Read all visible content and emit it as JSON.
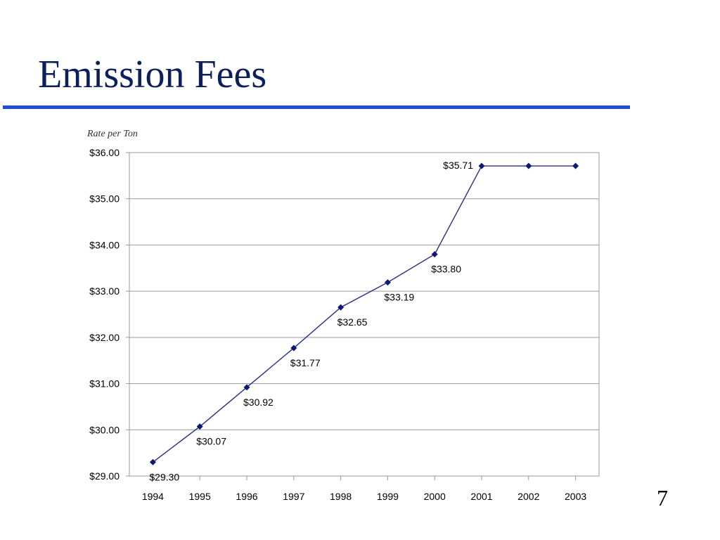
{
  "slide": {
    "title": "Emission Fees",
    "page_number": "7",
    "rule_color": "#1f4fd6",
    "title_color": "#0a1f5c"
  },
  "chart_data": {
    "type": "line",
    "title": "",
    "xlabel": "",
    "ylabel": "Rate per Ton",
    "x": [
      "1994",
      "1995",
      "1996",
      "1997",
      "1998",
      "1999",
      "2000",
      "2001",
      "2002",
      "2003"
    ],
    "series": [
      {
        "values": [
          29.3,
          30.07,
          30.92,
          31.77,
          32.65,
          33.19,
          33.8,
          35.71,
          35.71,
          35.71
        ],
        "color": "#2b2f86",
        "data_labels": [
          "$29.30",
          "$30.07",
          "$30.92",
          "$31.77",
          "$32.65",
          "$33.19",
          "$33.80",
          "$35.71",
          "",
          ""
        ]
      }
    ],
    "ylim": [
      29,
      36
    ],
    "y_ticks": [
      29,
      30,
      31,
      32,
      33,
      34,
      35,
      36
    ],
    "y_tick_labels": [
      "$29.00",
      "$30.00",
      "$31.00",
      "$32.00",
      "$33.00",
      "$34.00",
      "$35.00",
      "$36.00"
    ],
    "grid": true,
    "legend": "none"
  }
}
